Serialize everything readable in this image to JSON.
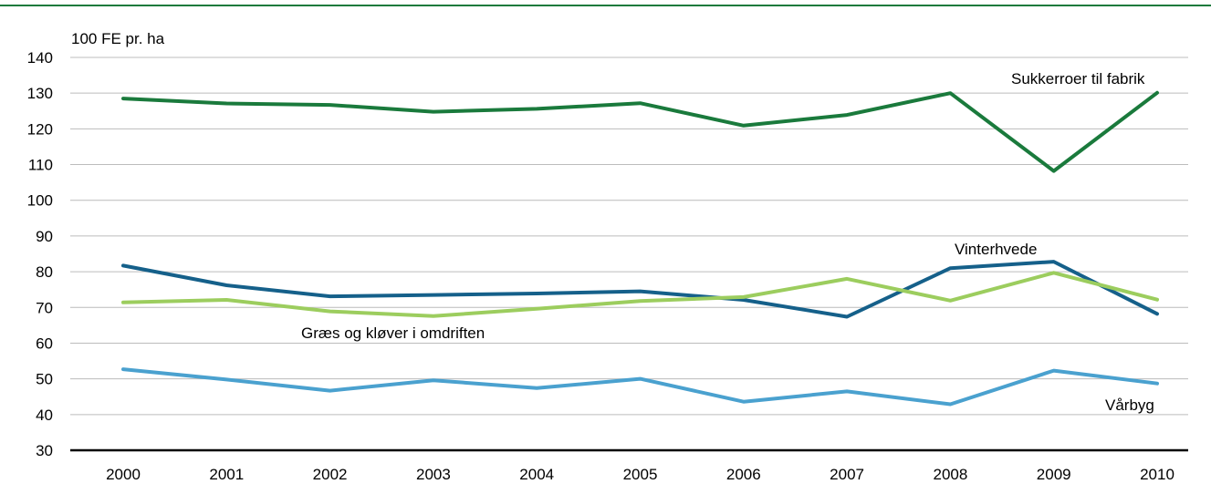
{
  "chart_data": {
    "type": "line",
    "ylabel": "100 FE pr. ha",
    "ylim": [
      30,
      140
    ],
    "y_ticks": [
      30,
      40,
      50,
      60,
      70,
      80,
      90,
      100,
      110,
      120,
      130,
      140
    ],
    "grid": true,
    "legend": "inline labels",
    "x": [
      "2000",
      "2001",
      "2002",
      "2003",
      "2004",
      "2005",
      "2006",
      "2007",
      "2008",
      "2009",
      "2010"
    ],
    "series": [
      {
        "name": "Sukkerroer til fabrik",
        "color": "#1a7a3c",
        "values": [
          128.5,
          127.1,
          126.7,
          124.8,
          125.6,
          127.2,
          120.9,
          123.9,
          130.0,
          108.2,
          130.1
        ]
      },
      {
        "name": "Vinterhvede",
        "color": "#15608a",
        "values": [
          81.7,
          76.2,
          73.1,
          73.5,
          73.9,
          74.5,
          72.1,
          67.4,
          81.0,
          82.8,
          68.2
        ]
      },
      {
        "name": "Græs og kløver i omdriften",
        "color": "#9ccd5e",
        "values": [
          71.4,
          72.1,
          68.9,
          67.6,
          69.6,
          71.8,
          72.9,
          78.0,
          71.9,
          79.7,
          72.2
        ]
      },
      {
        "name": "Vårbyg",
        "color": "#4aa1cf",
        "values": [
          52.7,
          49.8,
          46.7,
          49.6,
          47.4,
          50.0,
          43.6,
          46.5,
          42.9,
          52.3,
          48.7
        ]
      }
    ]
  }
}
